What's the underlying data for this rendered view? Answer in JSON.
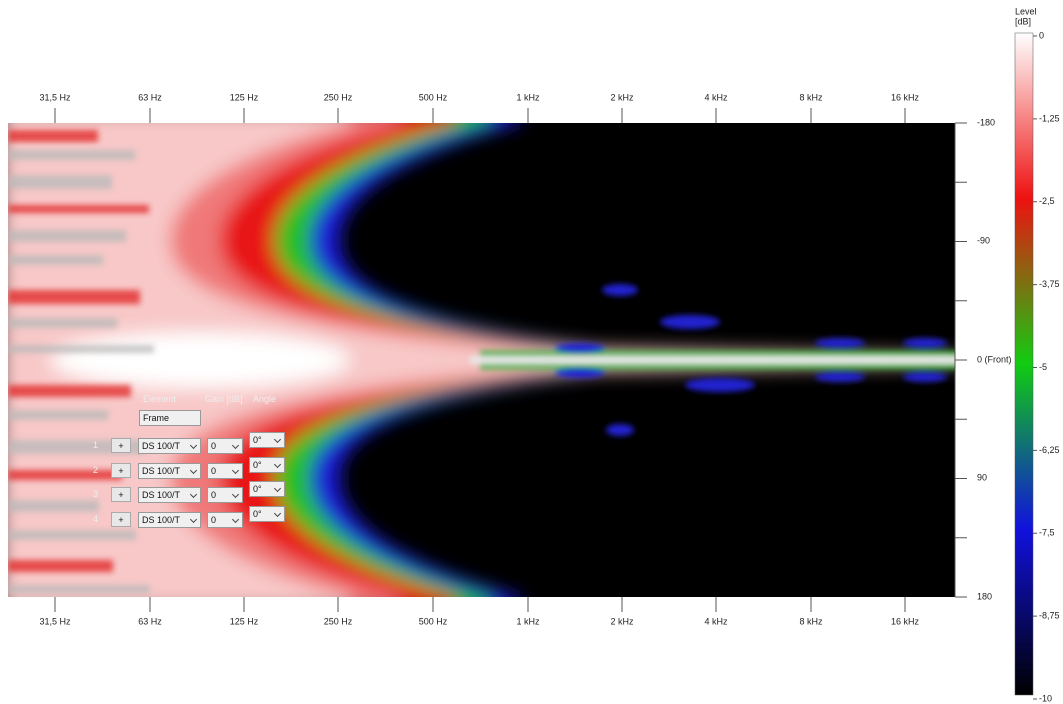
{
  "x_axis_labels": [
    "31,5 Hz",
    "63 Hz",
    "125 Hz",
    "250 Hz",
    "500 Hz",
    "1 kHz",
    "2 kHz",
    "4 kHz",
    "8 kHz",
    "16 kHz"
  ],
  "y_axis_labels": [
    "-180",
    "-90",
    "0 (Front)",
    "90",
    "180"
  ],
  "colorbar": {
    "title_lines": [
      "Level",
      "[dB]"
    ],
    "labels": [
      "0",
      "-1,25",
      "-2,5",
      "-3,75",
      "-5",
      "-6,25",
      "-7,5",
      "-8,75",
      "-10"
    ]
  },
  "controls": {
    "headers": [
      "Element",
      "Gain [dB]",
      "Angle"
    ],
    "frame_label": "Frame",
    "rows": [
      {
        "index": "1",
        "button": "+",
        "element": "DS 100/T",
        "gain": "0",
        "angle": "0°"
      },
      {
        "index": "2",
        "button": "+",
        "element": "DS 100/T",
        "gain": "0",
        "angle": "0°"
      },
      {
        "index": "3",
        "button": "+",
        "element": "DS 100/T",
        "gain": "0",
        "angle": "0°"
      },
      {
        "index": "4",
        "button": "+",
        "element": "DS 100/T",
        "gain": "0",
        "angle": "0°"
      }
    ]
  }
}
